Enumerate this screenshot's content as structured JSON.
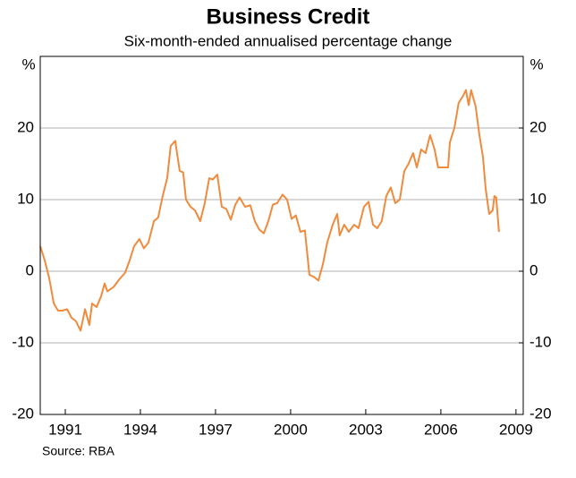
{
  "chart_data": {
    "type": "line",
    "title": "Business Credit",
    "subtitle": "Six-month-ended annualised percentage change",
    "y_unit_label": "%",
    "y2_unit_label": "%",
    "source": "Source: RBA",
    "x": [
      1990.0,
      1990.18,
      1990.36,
      1990.54,
      1990.71,
      1990.89,
      1991.07,
      1991.25,
      1991.43,
      1991.61,
      1991.79,
      1991.96,
      1992.07,
      1992.25,
      1992.43,
      1992.57,
      1992.68,
      1992.93,
      1993.14,
      1993.39,
      1993.57,
      1993.75,
      1993.96,
      1994.14,
      1994.32,
      1994.54,
      1994.71,
      1994.89,
      1995.07,
      1995.21,
      1995.39,
      1995.57,
      1995.71,
      1995.82,
      1996.0,
      1996.18,
      1996.39,
      1996.57,
      1996.75,
      1996.89,
      1997.07,
      1997.25,
      1997.43,
      1997.61,
      1997.79,
      1997.96,
      1998.18,
      1998.39,
      1998.57,
      1998.75,
      1998.93,
      1999.11,
      1999.29,
      1999.46,
      1999.68,
      1999.86,
      2000.04,
      2000.21,
      2000.39,
      2000.57,
      2000.75,
      2000.93,
      2001.11,
      2001.29,
      2001.46,
      2001.68,
      2001.86,
      2001.96,
      2002.14,
      2002.32,
      2002.54,
      2002.71,
      2002.93,
      2003.11,
      2003.29,
      2003.46,
      2003.64,
      2003.82,
      2004.0,
      2004.18,
      2004.36,
      2004.54,
      2004.71,
      2004.89,
      2005.04,
      2005.21,
      2005.39,
      2005.57,
      2005.75,
      2005.89,
      2006.11,
      2006.29,
      2006.36,
      2006.54,
      2006.71,
      2006.89,
      2007.0,
      2007.11,
      2007.21,
      2007.39,
      2007.54,
      2007.68,
      2007.79,
      2007.93,
      2008.07,
      2008.14,
      2008.21,
      2008.32
    ],
    "series": [
      {
        "name": "Business credit",
        "color": "#f08a3c",
        "values": [
          3.5,
          1.5,
          -1,
          -4.5,
          -5.5,
          -5.5,
          -5.3,
          -6.5,
          -7,
          -8.3,
          -5.3,
          -7.5,
          -4.5,
          -5,
          -3.5,
          -1.7,
          -2.8,
          -2.2,
          -1.2,
          -0.2,
          1.5,
          3.5,
          4.5,
          3.2,
          4,
          7,
          7.5,
          10.5,
          13,
          17.5,
          18.2,
          14,
          13.8,
          10,
          9,
          8.5,
          7,
          9.5,
          13,
          12.8,
          13.5,
          9,
          8.7,
          7.2,
          9.3,
          10.3,
          9,
          9.2,
          7,
          5.8,
          5.3,
          7,
          9.3,
          9.5,
          10.7,
          10,
          7.3,
          7.8,
          5.5,
          5.7,
          -0.5,
          -0.8,
          -1.3,
          1,
          4,
          6.5,
          8,
          5,
          6.5,
          5.5,
          6.5,
          6,
          9,
          9.7,
          6.5,
          6,
          7,
          10.5,
          11.7,
          9.5,
          10,
          14,
          15,
          16.5,
          14.5,
          17,
          16.5,
          19,
          17,
          14.5,
          14.5,
          14.5,
          18,
          20,
          23.5,
          24.5,
          25.3,
          23.2,
          25.3,
          23,
          19,
          16,
          11.5,
          8,
          8.5,
          10.5,
          10.3,
          5.5
        ]
      }
    ],
    "xlim": [
      1990.0,
      2009.29
    ],
    "xticks": [
      1991,
      1994,
      1997,
      2000,
      2003,
      2006,
      2009
    ],
    "ylim": [
      -20,
      30
    ],
    "yticks": [
      -20,
      -10,
      0,
      10,
      20
    ],
    "y2lim": [
      -20,
      30
    ],
    "y2ticks": [
      -20,
      -10,
      0,
      10,
      20
    ],
    "grid": true,
    "legend": false
  }
}
